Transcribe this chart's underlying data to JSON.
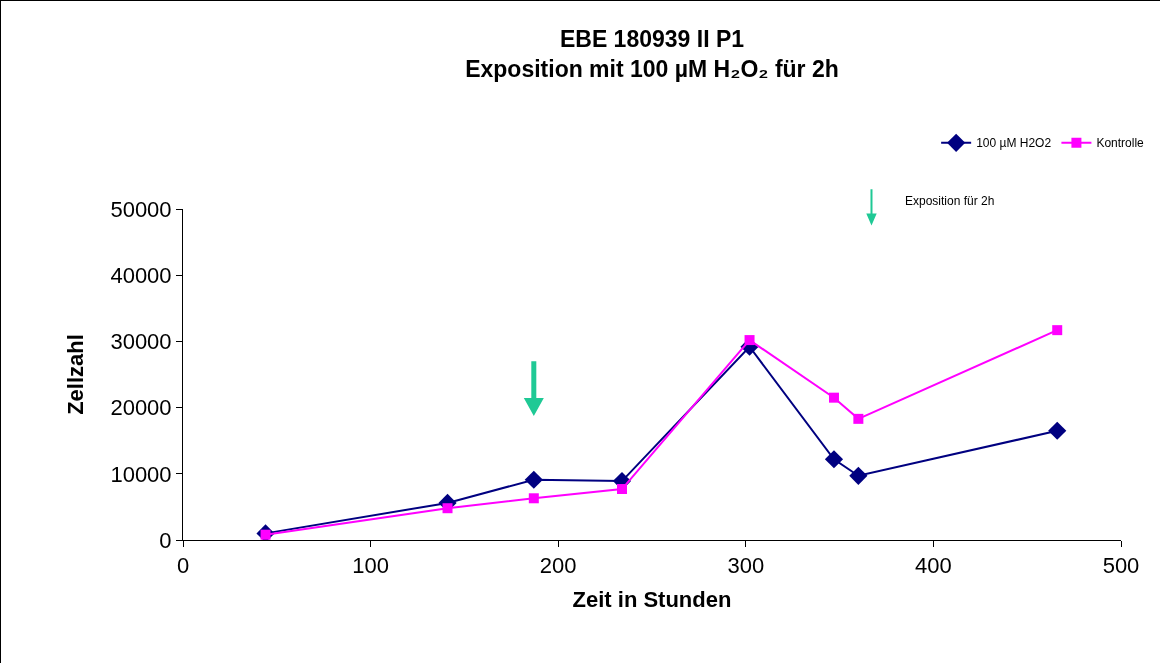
{
  "chart_data": {
    "type": "line",
    "title": "EBE 180939 II P1\nExposition mit 100 µM H₂O₂ für 2h",
    "xlabel": "Zeit in Stunden",
    "ylabel": "Zellzahl",
    "x": [
      44,
      141,
      187,
      234,
      302,
      347,
      360,
      466
    ],
    "series": [
      {
        "name": "100 µM H2O2",
        "color": "#000080",
        "marker": "diamond",
        "values": [
          1000,
          5600,
          9100,
          8900,
          29200,
          12200,
          9700,
          16500
        ]
      },
      {
        "name": "Kontrolle",
        "color": "#ff00ff",
        "marker": "square",
        "values": [
          800,
          4800,
          6300,
          7700,
          30200,
          21500,
          18300,
          31700
        ]
      }
    ],
    "xlim": [
      0,
      500
    ],
    "xticks": [
      0,
      100,
      200,
      300,
      400,
      500
    ],
    "ylim": [
      0,
      50000
    ],
    "yticks": [
      0,
      10000,
      20000,
      30000,
      40000,
      50000
    ],
    "annotations": [
      "Exposition für 2h"
    ],
    "grid": false,
    "legend": "top right",
    "line_style": "solid"
  }
}
